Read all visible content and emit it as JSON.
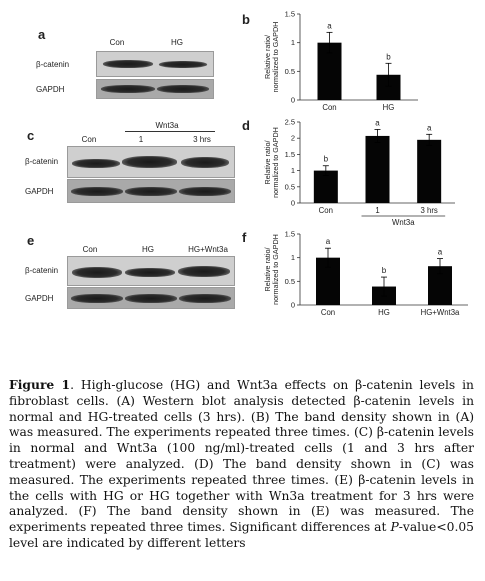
{
  "panels": {
    "a": {
      "letter": "a",
      "lanes": [
        "Con",
        "HG"
      ],
      "rows": [
        "β-catenin",
        "GAPDH"
      ]
    },
    "c": {
      "letter": "c",
      "group_label": "Wnt3a",
      "lanes": [
        "Con",
        "1",
        "3 hrs"
      ],
      "rows": [
        "β-catenin",
        "GAPDH"
      ]
    },
    "e": {
      "letter": "e",
      "lanes": [
        "Con",
        "HG",
        "HG+Wnt3a"
      ],
      "rows": [
        "β-catenin",
        "GAPDH"
      ]
    }
  },
  "chart_data": [
    {
      "type": "bar",
      "panel": "b",
      "categories": [
        "Con",
        "HG"
      ],
      "values": [
        1.0,
        0.44
      ],
      "errors": [
        0.18,
        0.2
      ],
      "letters": [
        "a",
        "b"
      ],
      "ylabel": "Relative ratio/ normalized to GAPDH",
      "yticks": [
        "0",
        "0.5",
        "1",
        "1.5"
      ],
      "ylim": [
        0,
        1.5
      ]
    },
    {
      "type": "bar",
      "panel": "d",
      "categories": [
        "Con",
        "1",
        "3 hrs"
      ],
      "group_label": "Wnt3a",
      "values": [
        1.0,
        2.07,
        1.95
      ],
      "errors": [
        0.15,
        0.2,
        0.17
      ],
      "letters": [
        "b",
        "a",
        "a"
      ],
      "ylabel": "Relative ratio/ normalized to GAPDH",
      "yticks": [
        "0",
        "0.5",
        "1",
        "1.5",
        "2",
        "2.5"
      ],
      "ylim": [
        0,
        2.5
      ]
    },
    {
      "type": "bar",
      "panel": "f",
      "categories": [
        "Con",
        "HG",
        "HG+Wnt3a"
      ],
      "values": [
        1.0,
        0.39,
        0.82
      ],
      "errors": [
        0.2,
        0.2,
        0.16
      ],
      "letters": [
        "a",
        "b",
        "a"
      ],
      "ylabel": "Relative ratio/ normalized to GAPDH",
      "yticks": [
        "0",
        "0.5",
        "1",
        "1.5"
      ],
      "ylim": [
        0,
        1.5
      ]
    }
  ],
  "caption": {
    "figure_label": "Figure 1",
    "t1": ". High-glucose (HG) and Wnt3a effects on β-catenin levels in fibroblast cells. (A) Western blot analysis detected β-catenin levels in normal and HG-treated cells (3 hrs). (B) The band density shown in (A) was measured. The experiments repeated three times. (C) β-catenin levels in normal and Wnt3a (100 ng/ml)-treated cells (1 and 3 hrs after treatment) were analyzed. (D) The band density shown in (C) was measured. The experiments repeated three times. (E) β-catenin levels in the cells with HG or HG together with Wn3a treatment for 3 hrs were analyzed. (F) The band density shown in (E) was measured. The experiments repeated three times. Significant differences at ",
    "p": "P",
    "t2": "-value<0.05 level are indicated by different letters"
  }
}
